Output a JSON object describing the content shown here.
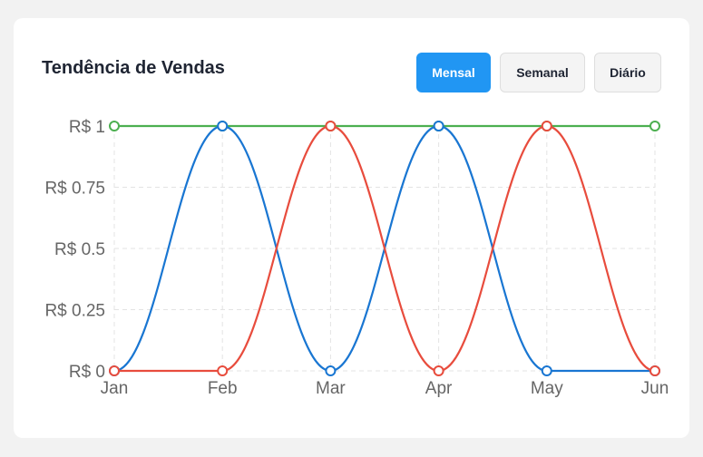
{
  "header": {
    "title": "Tendência de Vendas",
    "buttons": [
      {
        "label": "Mensal",
        "active": true
      },
      {
        "label": "Semanal",
        "active": false
      },
      {
        "label": "Diário",
        "active": false
      }
    ]
  },
  "colors": {
    "accent": "#2196f3",
    "series_green": "#4caf50",
    "series_blue": "#1976d2",
    "series_red": "#e84c3d"
  },
  "chart_data": {
    "type": "line",
    "title": "",
    "xlabel": "",
    "ylabel": "",
    "categories": [
      "Jan",
      "Feb",
      "Mar",
      "Apr",
      "May",
      "Jun"
    ],
    "y_ticks": [
      "R$ 0",
      "R$ 0.25",
      "R$ 0.5",
      "R$ 0.75",
      "R$ 1"
    ],
    "ylim": [
      0,
      1
    ],
    "grid": true,
    "legend": "none",
    "series": [
      {
        "color": "#4caf50",
        "values": [
          1,
          1,
          1,
          1,
          1,
          1
        ]
      },
      {
        "color": "#1976d2",
        "values": [
          0,
          1,
          0,
          1,
          0,
          0
        ]
      },
      {
        "color": "#e84c3d",
        "values": [
          0,
          0,
          1,
          0,
          1,
          0
        ]
      }
    ]
  }
}
